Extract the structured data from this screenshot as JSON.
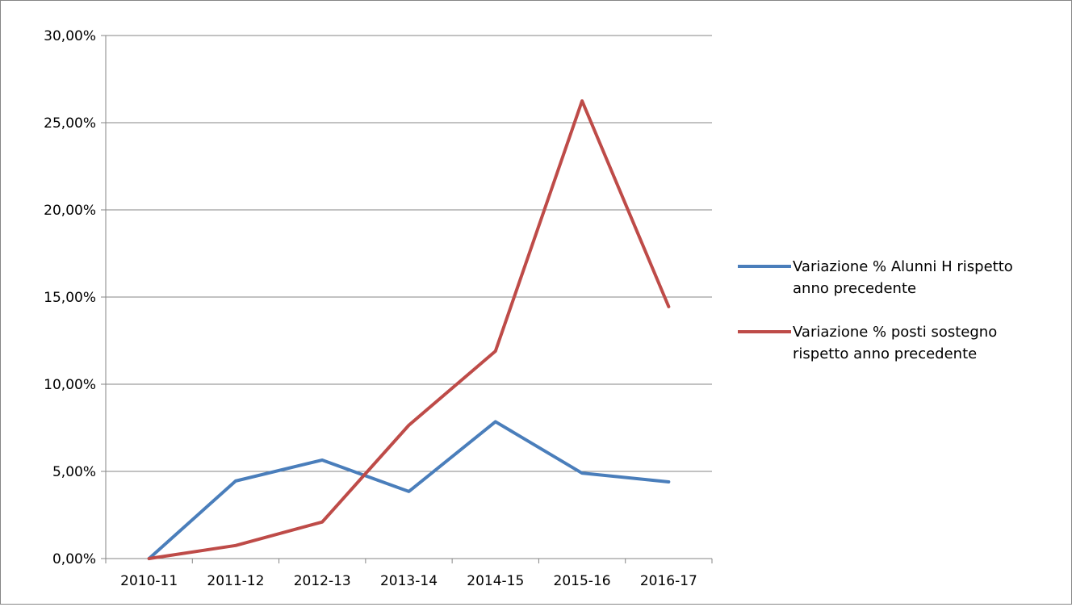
{
  "chart_data": {
    "type": "line",
    "title": "",
    "xlabel": "",
    "ylabel": "",
    "categories": [
      "2010-11",
      "2011-12",
      "2012-13",
      "2013-14",
      "2014-15",
      "2015-16",
      "2016-17"
    ],
    "ylim": [
      0,
      0.3
    ],
    "yticks": [
      0,
      0.05,
      0.1,
      0.15,
      0.2,
      0.25,
      0.3
    ],
    "ytick_labels": [
      "0,00%",
      "5,00%",
      "10,00%",
      "15,00%",
      "20,00%",
      "25,00%",
      "30,00%"
    ],
    "grid": true,
    "legend": "right",
    "series": [
      {
        "name": "Variazione % Alunni H  rispetto anno precedente",
        "legend_lines": [
          "Variazione % Alunni H  rispetto",
          "anno precedente"
        ],
        "color": "#4A7EBB",
        "values": [
          0.0,
          0.0445,
          0.0565,
          0.0385,
          0.0785,
          0.049,
          0.044
        ]
      },
      {
        "name": "Variazione % posti sostegno rispetto anno precedente",
        "legend_lines": [
          "Variazione % posti sostegno",
          "rispetto anno precedente"
        ],
        "color": "#BE4B48",
        "values": [
          0.0,
          0.0075,
          0.021,
          0.0765,
          0.119,
          0.2625,
          0.1445
        ]
      }
    ]
  }
}
